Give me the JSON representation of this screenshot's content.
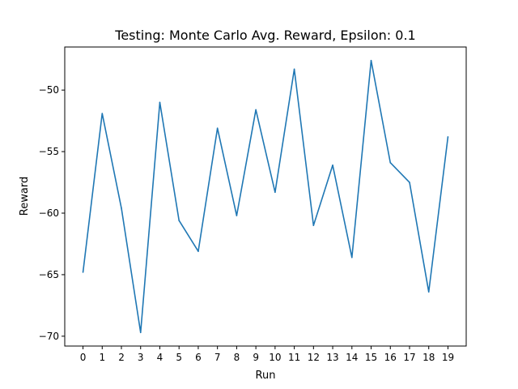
{
  "chart_data": {
    "type": "line",
    "title": "Testing: Monte Carlo Avg. Reward, Epsilon: 0.1",
    "xlabel": "Run",
    "ylabel": "Reward",
    "x": [
      0,
      1,
      2,
      3,
      4,
      5,
      6,
      7,
      8,
      9,
      10,
      11,
      12,
      13,
      14,
      15,
      16,
      17,
      18,
      19
    ],
    "series": [
      {
        "name": "",
        "color": "#1f77b4",
        "values": [
          -64.8,
          -51.9,
          -59.6,
          -69.7,
          -51.0,
          -60.6,
          -63.1,
          -53.1,
          -60.2,
          -51.6,
          -58.3,
          -48.3,
          -61.0,
          -56.1,
          -63.6,
          -47.6,
          -55.9,
          -57.5,
          -66.4,
          -53.8
        ]
      }
    ],
    "xticks": [
      "0",
      "1",
      "2",
      "3",
      "4",
      "5",
      "6",
      "7",
      "8",
      "9",
      "10",
      "11",
      "12",
      "13",
      "14",
      "15",
      "16",
      "17",
      "18",
      "19"
    ],
    "yticks": [
      -70,
      -65,
      -60,
      -55,
      -50
    ],
    "ytick_labels": [
      "−70",
      "−65",
      "−60",
      "−55",
      "−50"
    ],
    "xlim": [
      -0.95,
      19.95
    ],
    "ylim": [
      -70.8,
      -46.5
    ],
    "grid": false,
    "legend": "none"
  }
}
